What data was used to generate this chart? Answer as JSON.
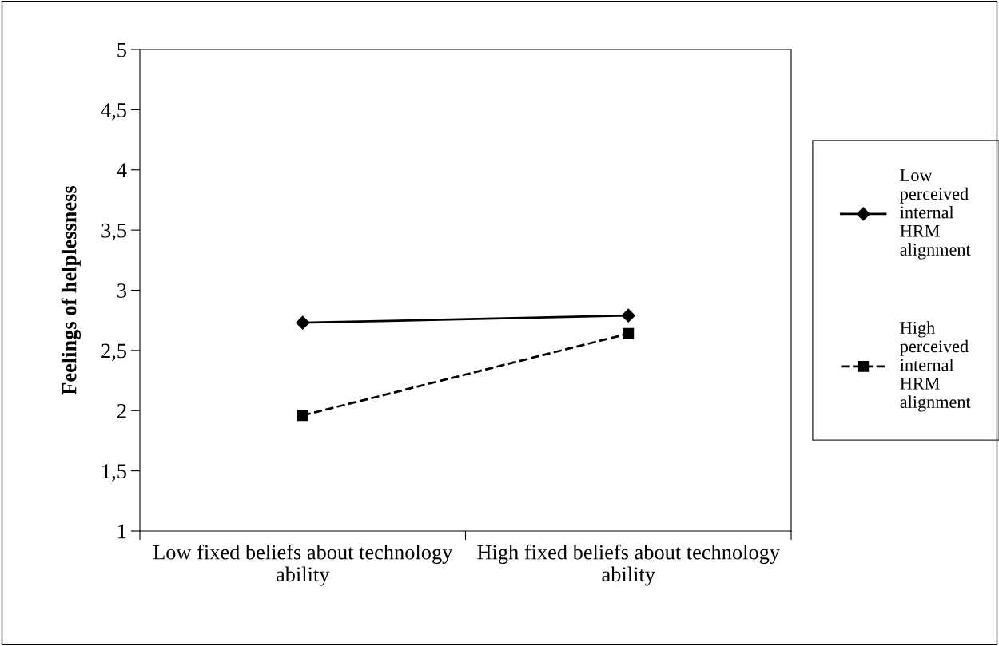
{
  "chart_data": {
    "type": "line",
    "ylabel": "Feelings of helplessness",
    "categories": [
      "Low fixed beliefs about technology ability",
      "High fixed beliefs about technology ability"
    ],
    "series": [
      {
        "name": "Low perceived internal HRM alignment",
        "color": "#000000",
        "values": [
          2.73,
          2.79
        ],
        "marker": "diamond",
        "line_style": "solid"
      },
      {
        "name": "High perceived internal HRM alignment",
        "color": "#000000",
        "values": [
          1.96,
          2.64
        ],
        "marker": "square",
        "line_style": "dashed"
      }
    ],
    "ylim": [
      1,
      5
    ],
    "yticks": [
      {
        "value": 1,
        "label": "1"
      },
      {
        "value": 1.5,
        "label": "1,5"
      },
      {
        "value": 2,
        "label": "2"
      },
      {
        "value": 2.5,
        "label": "2,5"
      },
      {
        "value": 3,
        "label": "3"
      },
      {
        "value": 3.5,
        "label": "3,5"
      },
      {
        "value": 4,
        "label": "4"
      },
      {
        "value": 4.5,
        "label": "4,5"
      },
      {
        "value": 5,
        "label": "5"
      }
    ],
    "grid": false,
    "legend": "right"
  }
}
